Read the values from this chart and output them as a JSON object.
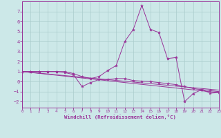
{
  "xlabel": "Windchill (Refroidissement éolien,°C)",
  "xlim": [
    0,
    23
  ],
  "ylim": [
    -2.6,
    8.0
  ],
  "yticks": [
    -2,
    -1,
    0,
    1,
    2,
    3,
    4,
    5,
    6,
    7
  ],
  "xticks": [
    0,
    1,
    2,
    3,
    4,
    5,
    6,
    7,
    8,
    9,
    10,
    11,
    12,
    13,
    14,
    15,
    16,
    17,
    18,
    19,
    20,
    21,
    22,
    23
  ],
  "background_color": "#cce8e8",
  "grid_color": "#aacccc",
  "line_color": "#993399",
  "line1_y": [
    1.0,
    1.0,
    1.0,
    1.0,
    1.0,
    1.0,
    0.8,
    0.5,
    0.3,
    0.5,
    1.1,
    1.6,
    4.0,
    5.2,
    7.6,
    5.2,
    4.9,
    2.3,
    2.4,
    -2.0,
    -1.2,
    -0.8,
    -1.15,
    -1.1
  ],
  "line2_y": [
    1.0,
    1.0,
    1.0,
    1.0,
    1.0,
    0.9,
    0.7,
    -0.5,
    -0.1,
    0.2,
    0.2,
    0.3,
    0.3,
    0.1,
    0.05,
    0.0,
    -0.1,
    -0.2,
    -0.3,
    -0.5,
    -0.7,
    -0.8,
    -0.9,
    -1.0
  ],
  "line3_y": [
    1.0,
    -0.85
  ],
  "line4_y": [
    1.0,
    -1.1
  ]
}
